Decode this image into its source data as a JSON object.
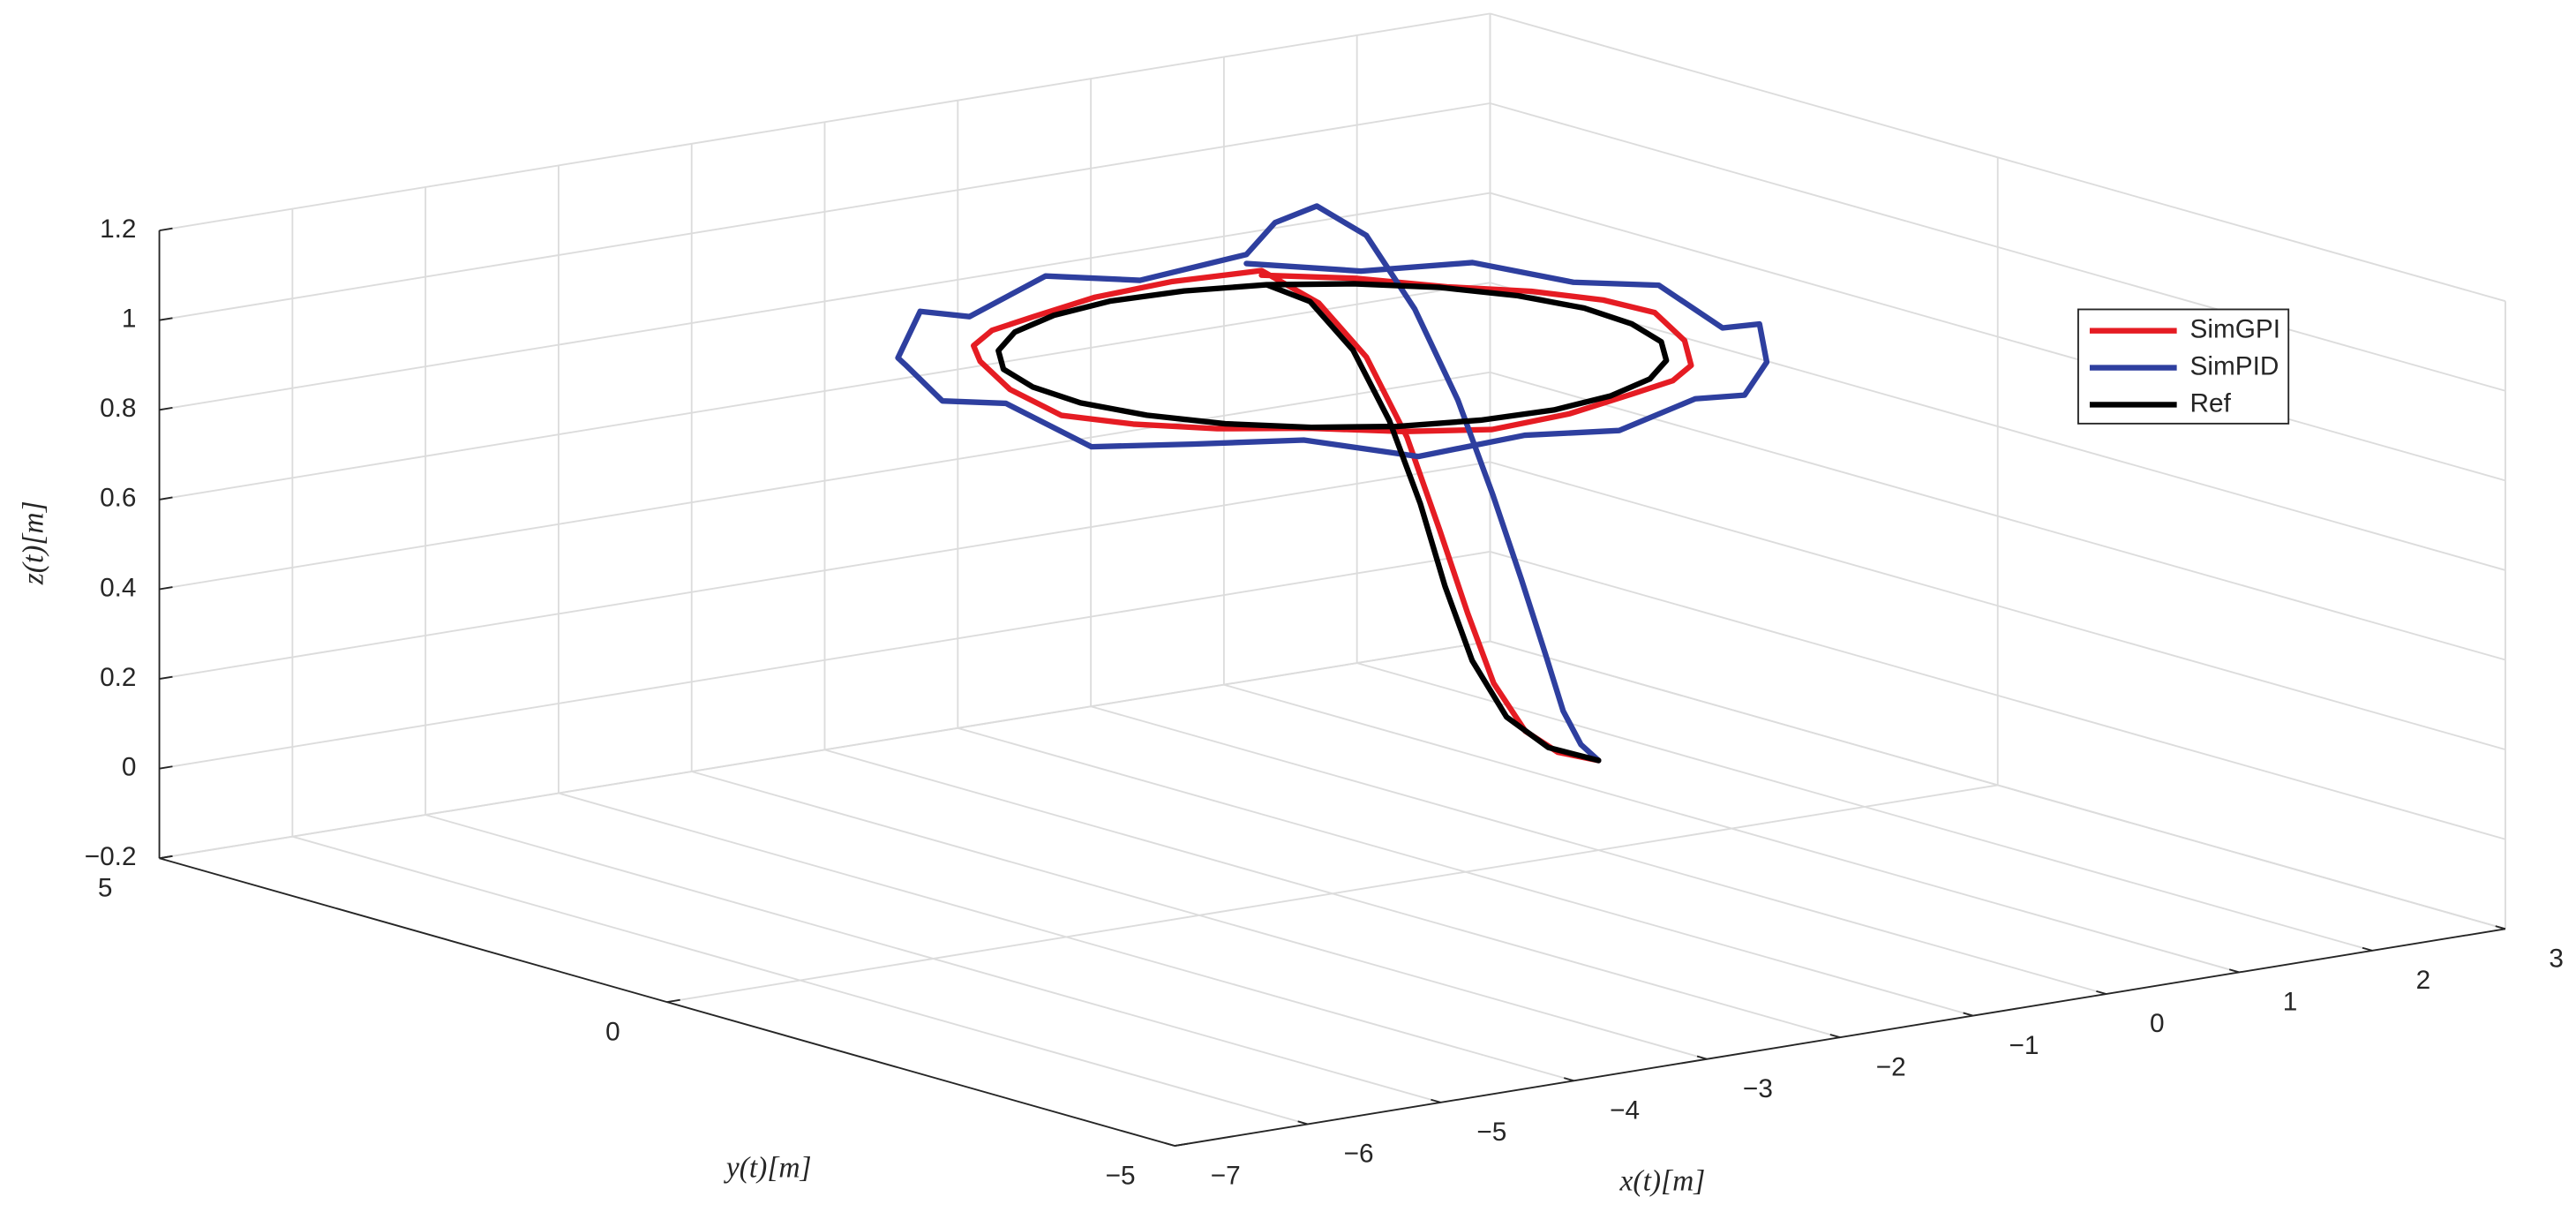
{
  "chart_data": {
    "type": "line3d",
    "xlabel": "x(t)[m]",
    "ylabel": "y(t)[m]",
    "zlabel": "z(t)[m]",
    "xlim": [
      -7,
      3
    ],
    "ylim": [
      -5,
      5
    ],
    "zlim": [
      -0.2,
      1.2
    ],
    "xticks": [
      {
        "value": -7,
        "label": "−7"
      },
      {
        "value": -6,
        "label": "−6"
      },
      {
        "value": -5,
        "label": "−5"
      },
      {
        "value": -4,
        "label": "−4"
      },
      {
        "value": -3,
        "label": "−3"
      },
      {
        "value": -2,
        "label": "−2"
      },
      {
        "value": -1,
        "label": "−1"
      },
      0,
      1,
      2,
      3
    ],
    "yticks": [
      {
        "value": -5,
        "label": "−5"
      },
      0,
      5
    ],
    "zticks": [
      {
        "value": -0.2,
        "label": "−0.2"
      },
      0,
      0.2,
      0.4,
      0.6,
      0.8,
      1,
      1.2
    ],
    "grid": true,
    "legend": "east",
    "series": [
      {
        "name": "SimGPI",
        "color": "#e51c23",
        "x": [
          0,
          -0.13,
          -0.23,
          -0.33,
          -0.41,
          -0.5,
          -0.6,
          -0.73,
          -0.88,
          -1.06,
          -1.59,
          -2.15,
          -2.7,
          -3.2,
          -3.62,
          -3.93,
          -4.11,
          -4.15,
          -4.03,
          -3.78,
          -3.41,
          -2.94,
          -2.41,
          -1.85,
          -1.3,
          -0.8,
          -0.38,
          -0.07,
          0.11,
          0.15,
          0.03,
          -0.22,
          -0.59,
          -1.06
        ],
        "y": [
          0,
          0.23,
          0.42,
          0.6,
          0.75,
          0.91,
          1.1,
          1.33,
          1.6,
          1.93,
          2.11,
          2.14,
          2.03,
          1.78,
          1.41,
          0.94,
          0.41,
          -0.15,
          -0.7,
          -1.2,
          -1.62,
          -1.93,
          -2.11,
          -2.14,
          -2.03,
          -1.78,
          -1.41,
          -0.94,
          -0.41,
          0.15,
          0.7,
          1.2,
          1.62,
          1.93
        ],
        "z": [
          0,
          0.01,
          0.05,
          0.15,
          0.3,
          0.48,
          0.68,
          0.85,
          0.96,
          1.02,
          1.01,
          1.0,
          0.99,
          1.0,
          1.01,
          1.02,
          1.0,
          0.98,
          0.99,
          1.0,
          1.01,
          1.0,
          0.99,
          1.0,
          1.01,
          1.0,
          0.99,
          1.0,
          1.02,
          1.01,
          1.0,
          0.99,
          1.0,
          1.01
        ]
      },
      {
        "name": "SimPID",
        "color": "#2e3f9f",
        "x": [
          0,
          -0.04,
          -0.09,
          -0.13,
          -0.19,
          -0.26,
          -0.34,
          -0.45,
          -0.57,
          -0.69,
          -0.79,
          -0.86,
          -1.5,
          -2.18,
          -2.85,
          -3.45,
          -3.96,
          -4.34,
          -4.55,
          -4.59,
          -4.46,
          -4.16,
          -3.71,
          -3.14,
          -2.5,
          -1.82,
          -1.15,
          -0.55,
          -0.04,
          0.34,
          0.55,
          0.59,
          0.46,
          0.16,
          -0.29,
          -0.86
        ],
        "y": [
          0,
          0.12,
          0.23,
          0.35,
          0.51,
          0.7,
          0.94,
          1.22,
          1.54,
          1.87,
          2.15,
          2.34,
          2.55,
          2.59,
          2.46,
          2.16,
          1.71,
          1.14,
          0.5,
          -0.18,
          -0.85,
          -1.45,
          -1.96,
          -2.34,
          -2.55,
          -2.59,
          -2.46,
          -2.16,
          -1.71,
          -1.14,
          -0.5,
          0.18,
          0.85,
          1.45,
          1.96,
          2.34
        ],
        "z": [
          0,
          0.03,
          0.1,
          0.22,
          0.38,
          0.56,
          0.76,
          0.95,
          1.1,
          1.15,
          1.1,
          1.02,
          0.98,
          1.02,
          0.97,
          1.03,
          0.98,
          1.02,
          0.99,
          1.03,
          0.97,
          1.0,
          1.02,
          0.98,
          1.01,
          0.99,
          1.02,
          0.98,
          1.0,
          1.03,
          0.97,
          1.02,
          0.99,
          1.01,
          0.98,
          1.0
        ]
      },
      {
        "name": "Ref",
        "color": "#000000",
        "x": [
          0,
          -0.17,
          -0.31,
          -0.43,
          -0.52,
          -0.6,
          -0.71,
          -0.83,
          -0.97,
          -1.12,
          -1.62,
          -2.14,
          -2.65,
          -3.12,
          -3.51,
          -3.8,
          -3.96,
          -4.0,
          -3.89,
          -3.66,
          -3.31,
          -2.88,
          -2.38,
          -1.86,
          -1.35,
          -0.88,
          -0.49,
          -0.2,
          -0.04,
          0.0,
          -0.11,
          -0.34,
          -0.69,
          -1.12
        ],
        "y": [
          0,
          0.27,
          0.5,
          0.68,
          0.83,
          0.97,
          1.13,
          1.33,
          1.57,
          1.8,
          1.96,
          2.0,
          1.89,
          1.66,
          1.31,
          0.88,
          0.38,
          -0.14,
          -0.65,
          -1.12,
          -1.51,
          -1.8,
          -1.96,
          -2.0,
          -1.89,
          -1.66,
          -1.31,
          -0.88,
          -0.38,
          0.14,
          0.65,
          1.12,
          1.51,
          1.8
        ],
        "z": [
          0,
          0.02,
          0.08,
          0.2,
          0.36,
          0.54,
          0.72,
          0.87,
          0.97,
          1.0,
          1,
          1,
          1,
          1,
          1,
          1,
          1,
          1,
          1,
          1,
          1,
          1,
          1,
          1,
          1,
          1,
          1,
          1,
          1,
          1,
          1,
          1,
          1,
          1
        ]
      }
    ]
  }
}
